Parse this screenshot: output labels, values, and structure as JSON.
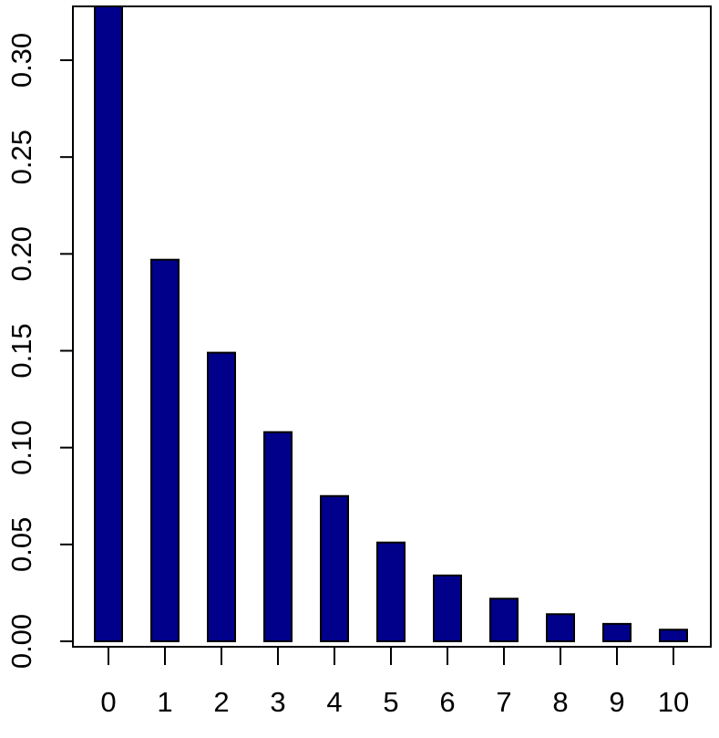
{
  "chart_data": {
    "type": "bar",
    "categories": [
      "0",
      "1",
      "2",
      "3",
      "4",
      "5",
      "6",
      "7",
      "8",
      "9",
      "10"
    ],
    "values": [
      0.329,
      0.197,
      0.149,
      0.108,
      0.075,
      0.051,
      0.034,
      0.022,
      0.014,
      0.009,
      0.006
    ],
    "y_ticks": [
      "0.00",
      "0.05",
      "0.10",
      "0.15",
      "0.20",
      "0.25",
      "0.30"
    ],
    "y_tick_values": [
      0,
      0.05,
      0.1,
      0.15,
      0.2,
      0.25,
      0.3
    ],
    "title": "",
    "xlabel": "",
    "ylabel": "",
    "ylim": [
      0,
      0.3265
    ],
    "grid": false,
    "legend": "none",
    "bar_color": "#00008B",
    "bar_edge_color": "#000000"
  }
}
